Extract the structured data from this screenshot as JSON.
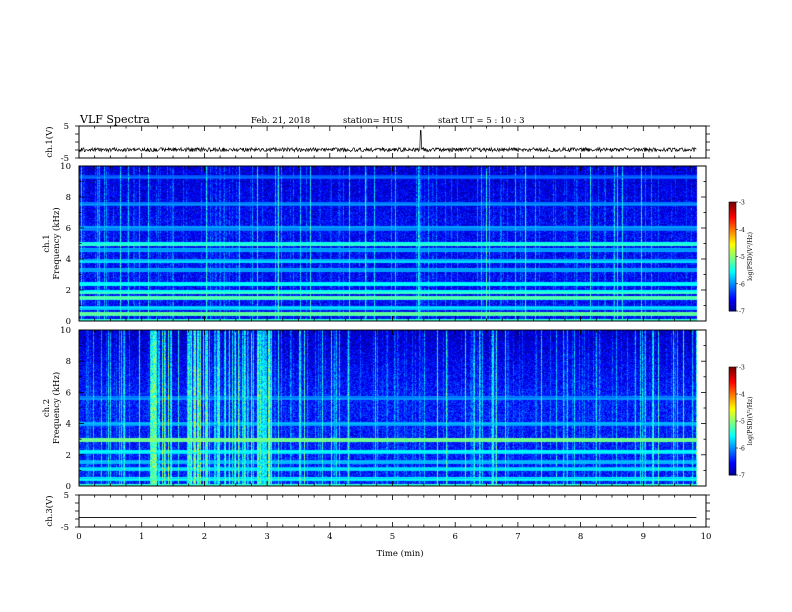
{
  "header": {
    "title": "VLF Spectra",
    "date": "Feb. 21, 2018",
    "station": "station= HUS",
    "start": "start  UT =   5 : 10 : 3"
  },
  "chart_data": [
    {
      "type": "line",
      "panel": "ch1-waveform",
      "ylabel": "ch.1(V)",
      "ylim": [
        -5,
        5
      ],
      "y_ticks": [
        "5",
        "-5"
      ],
      "xlim": [
        0,
        10
      ],
      "trace_level_v": -2.4,
      "trace_end_min": 9.85,
      "spike_at_min": 5.45,
      "color": "#000000"
    },
    {
      "type": "heatmap",
      "panel": "ch1-spectrogram",
      "ylabel": "ch.1\nFrequency (kHz)",
      "ylabel_lines": [
        "ch.1",
        "Frequency (kHz)"
      ],
      "xlim": [
        0,
        10
      ],
      "ylim": [
        0,
        10
      ],
      "y_ticks": [
        "0",
        "2",
        "4",
        "6",
        "8",
        "10"
      ],
      "data_end_min": 9.85,
      "background_level": -6.6,
      "bands_khz": [
        {
          "freq": 0.5,
          "level": -5.0
        },
        {
          "freq": 0.9,
          "level": -5.6
        },
        {
          "freq": 1.5,
          "level": -5.1
        },
        {
          "freq": 1.9,
          "level": -5.3
        },
        {
          "freq": 2.4,
          "level": -5.5
        },
        {
          "freq": 3.3,
          "level": -5.8
        },
        {
          "freq": 3.9,
          "level": -5.7
        },
        {
          "freq": 4.6,
          "level": -5.8
        },
        {
          "freq": 5.0,
          "level": -5.2
        },
        {
          "freq": 6.0,
          "level": -6.0
        },
        {
          "freq": 7.6,
          "level": -6.0
        },
        {
          "freq": 9.3,
          "level": -6.2
        }
      ],
      "colorbar": {
        "label": "log(PSD)(V²/Hz)",
        "ticks": [
          "-3",
          "-4",
          "-5",
          "-6",
          "-7"
        ],
        "range": [
          -7,
          -3
        ]
      }
    },
    {
      "type": "heatmap",
      "panel": "ch2-spectrogram",
      "ylabel": "ch.2\nFrequency (kHz)",
      "ylabel_lines": [
        "ch.2",
        "Frequency (kHz)"
      ],
      "xlim": [
        0,
        10
      ],
      "ylim": [
        0,
        10
      ],
      "y_ticks": [
        "0",
        "2",
        "4",
        "6",
        "8",
        "10"
      ],
      "data_end_min": 9.85,
      "background_level": -6.5,
      "bands_khz": [
        {
          "freq": 0.5,
          "level": -5.5
        },
        {
          "freq": 1.1,
          "level": -5.6
        },
        {
          "freq": 1.6,
          "level": -5.7
        },
        {
          "freq": 2.2,
          "level": -5.5
        },
        {
          "freq": 3.0,
          "level": -5.0
        },
        {
          "freq": 4.0,
          "level": -5.8
        },
        {
          "freq": 5.7,
          "level": -6.0
        }
      ],
      "broadband_activity_min": [
        [
          1.1,
          1.5
        ],
        [
          1.7,
          2.1
        ],
        [
          2.1,
          3.1
        ]
      ],
      "colorbar": {
        "label": "log(PSD)(V²/Hz)",
        "ticks": [
          "-3",
          "-4",
          "-5",
          "-6",
          "-7"
        ],
        "range": [
          -7,
          -3
        ]
      }
    },
    {
      "type": "line",
      "panel": "ch3-waveform",
      "ylabel": "ch.3(V)",
      "ylim": [
        -5,
        5
      ],
      "y_ticks": [
        "5",
        "-5"
      ],
      "xlim": [
        0,
        10
      ],
      "trace_level_v": -2.0,
      "trace_end_min": 9.85,
      "xlabel": "Time  (min)",
      "x_ticks": [
        "0",
        "1",
        "2",
        "3",
        "4",
        "5",
        "6",
        "7",
        "8",
        "9",
        "10"
      ],
      "color": "#000000"
    }
  ]
}
